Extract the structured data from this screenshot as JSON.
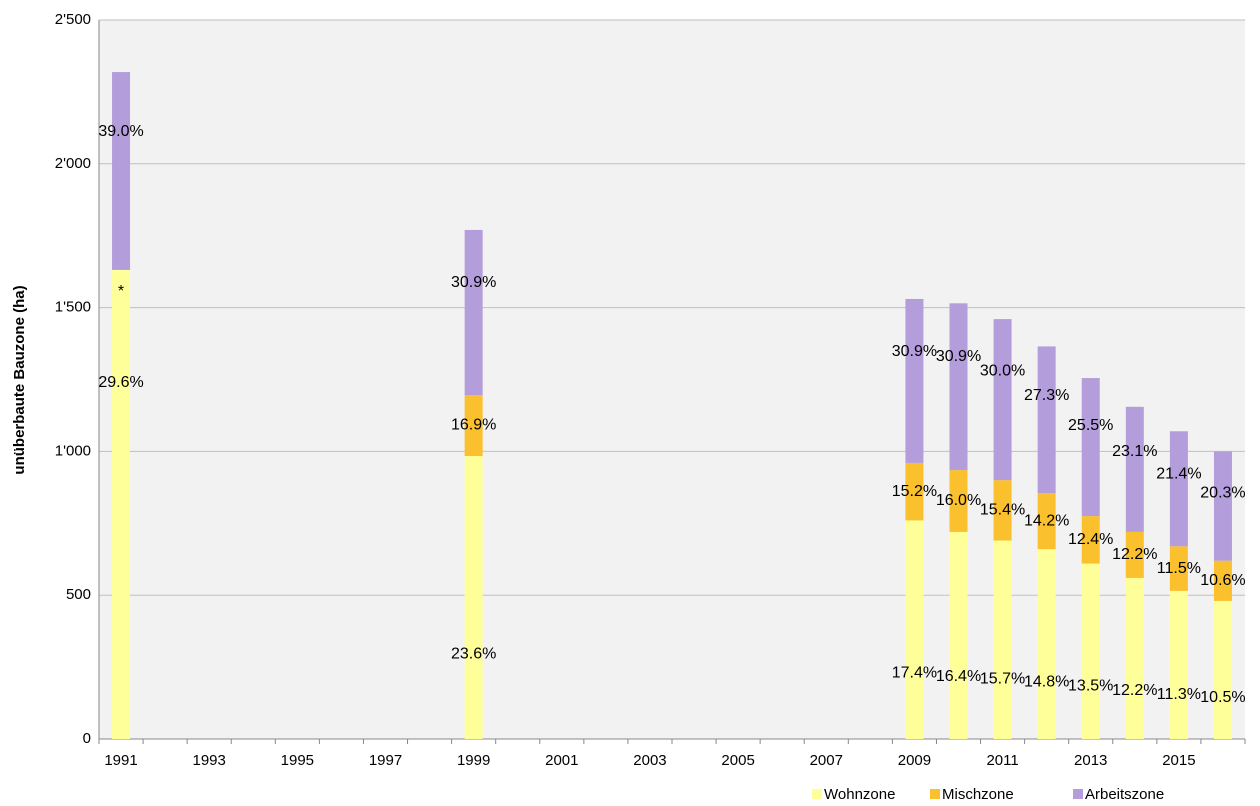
{
  "chart_data": {
    "type": "stacked_bar",
    "y_label": "unüberbaute Bauzone (ha)",
    "categories": [
      "1991",
      null,
      "1993",
      null,
      "1995",
      null,
      "1997",
      null,
      "1999",
      null,
      "2001",
      null,
      "2003",
      null,
      "2005",
      null,
      "2007",
      null,
      "2009",
      null,
      "2011",
      null,
      "2013",
      null,
      "2015",
      null
    ],
    "series": [
      {
        "name": "Wohnzone",
        "color": "#ffff99",
        "values": [
          1631,
          null,
          null,
          null,
          null,
          null,
          null,
          null,
          984,
          null,
          null,
          null,
          null,
          null,
          null,
          null,
          null,
          null,
          760,
          720,
          690,
          660,
          610,
          560,
          515,
          480
        ],
        "labels": [
          "29.6%",
          null,
          null,
          null,
          null,
          null,
          null,
          null,
          "23.6%",
          null,
          null,
          null,
          null,
          null,
          null,
          null,
          null,
          null,
          "17.4%",
          "16.4%",
          "15.7%",
          "14.8%",
          "13.5%",
          "12.2%",
          "11.3%",
          "10.5%"
        ]
      },
      {
        "name": "Mischzone",
        "color": "#fbc02d",
        "values": [
          null,
          null,
          null,
          null,
          null,
          null,
          null,
          null,
          212,
          null,
          null,
          null,
          null,
          null,
          null,
          null,
          null,
          null,
          200,
          215,
          210,
          195,
          165,
          160,
          155,
          140
        ],
        "labels": [
          null,
          null,
          null,
          null,
          null,
          null,
          null,
          null,
          "16.9%",
          null,
          null,
          null,
          null,
          null,
          null,
          null,
          null,
          null,
          "15.2%",
          "16.0%",
          "15.4%",
          "14.2%",
          "12.4%",
          "12.2%",
          "11.5%",
          "10.6%"
        ]
      },
      {
        "name": "Arbeitszone",
        "color": "#b39ddb",
        "values": [
          688,
          null,
          null,
          null,
          null,
          null,
          null,
          null,
          574,
          null,
          null,
          null,
          null,
          null,
          null,
          null,
          null,
          null,
          570,
          580,
          560,
          510,
          480,
          435,
          400,
          380
        ],
        "labels": [
          "39.0%",
          null,
          null,
          null,
          null,
          null,
          null,
          null,
          "30.9%",
          null,
          null,
          null,
          null,
          null,
          null,
          null,
          null,
          null,
          "30.9%",
          "30.9%",
          "30.0%",
          "27.3%",
          "25.5%",
          "23.1%",
          "21.4%",
          "20.3%"
        ]
      }
    ],
    "annotation": "*",
    "ylim": [
      0,
      2500
    ],
    "yticks": [
      0,
      500,
      {
        "value": 1000,
        "label": "1'000"
      },
      {
        "value": 1500,
        "label": "1'500"
      },
      {
        "value": 2000,
        "label": "2'000"
      },
      {
        "value": 2500,
        "label": "2'500"
      }
    ],
    "grid": true,
    "legend": "bottom-right"
  }
}
